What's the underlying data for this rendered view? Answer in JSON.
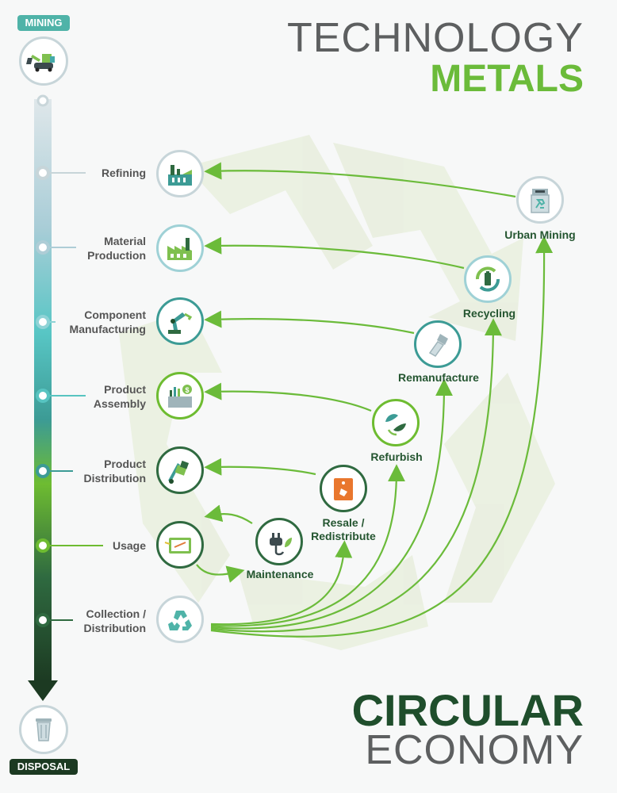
{
  "header": {
    "title_line1": "TECHNOLOGY",
    "title_line2": "METALS"
  },
  "footer": {
    "title_line1": "CIRCULAR",
    "title_line2": "ECONOMY"
  },
  "timeline": {
    "start_label": "MINING",
    "end_label": "DISPOSAL",
    "start_icon": "excavator-icon",
    "end_icon": "trash-bin-icon"
  },
  "stages": [
    {
      "label": "Refining",
      "icon": "refinery-icon"
    },
    {
      "label": "Material\nProduction",
      "icon": "factory-icon"
    },
    {
      "label": "Component\nManufacturing",
      "icon": "robot-arm-icon"
    },
    {
      "label": "Product\nAssembly",
      "icon": "box-with-chart-icon"
    },
    {
      "label": "Product\nDistribution",
      "icon": "hand-truck-icon"
    },
    {
      "label": "Usage",
      "icon": "tablet-icon"
    },
    {
      "label": "Collection /\nDistribution",
      "icon": "recycle-icon"
    }
  ],
  "loops": [
    {
      "label": "Urban Mining",
      "icon": "recycling-bin-icon"
    },
    {
      "label": "Recycling",
      "icon": "battery-recycle-icon"
    },
    {
      "label": "Remanufacture",
      "icon": "bolt-icon"
    },
    {
      "label": "Refurbish",
      "icon": "leaf-cycle-icon"
    },
    {
      "label": "Resale /\nRedistribute",
      "icon": "price-tag-icon"
    },
    {
      "label": "Maintenance",
      "icon": "plug-leaf-icon"
    }
  ],
  "colors": {
    "accent_green": "#6bbb3a",
    "dark_green": "#1f4e2c",
    "teal": "#4fb3a8",
    "gray_title": "#5d5f60"
  }
}
